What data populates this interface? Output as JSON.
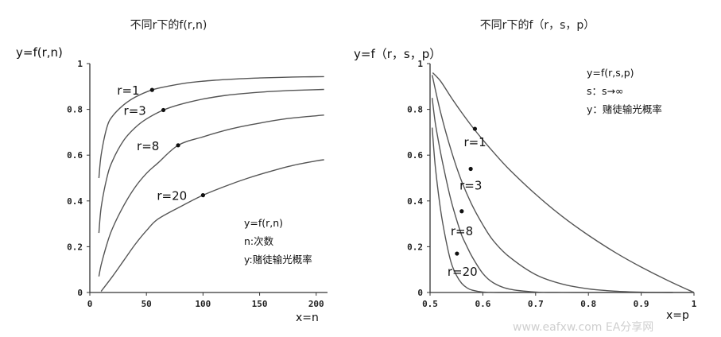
{
  "chart_data": [
    {
      "type": "line",
      "title": "不同r下的f(r,n)",
      "ylabel": "y=f(r,n)",
      "xlabel": "x=n",
      "xlim": [
        0,
        210
      ],
      "ylim": [
        0,
        1
      ],
      "xticks": [
        0,
        50,
        100,
        150,
        200
      ],
      "xtick_labels": [
        "0",
        "50",
        "100",
        "150",
        "200"
      ],
      "yticks": [
        0,
        0.2,
        0.4,
        0.6,
        0.8,
        1
      ],
      "ytick_labels": [
        "0",
        "0.2",
        "0.4",
        "0.6",
        "0.8",
        "1"
      ],
      "legend_notes": [
        "y=f(r,n)",
        "n:次数",
        "y:赌徒输光概率"
      ],
      "series": [
        {
          "name": "r=1",
          "x": [
            8,
            10,
            15,
            20,
            30,
            40,
            55,
            70,
            90,
            110,
            130,
            150,
            170,
            190,
            207
          ],
          "y": [
            0.5,
            0.6,
            0.72,
            0.77,
            0.82,
            0.853,
            0.885,
            0.902,
            0.918,
            0.927,
            0.933,
            0.937,
            0.94,
            0.942,
            0.943
          ],
          "marker": {
            "x": 55,
            "y": 0.885
          }
        },
        {
          "name": "r=3",
          "x": [
            8,
            10,
            15,
            20,
            30,
            40,
            50,
            65,
            80,
            100,
            120,
            140,
            160,
            180,
            207
          ],
          "y": [
            0.26,
            0.37,
            0.5,
            0.575,
            0.665,
            0.72,
            0.758,
            0.797,
            0.822,
            0.845,
            0.861,
            0.871,
            0.878,
            0.883,
            0.887
          ],
          "marker": {
            "x": 65,
            "y": 0.797
          }
        },
        {
          "name": "r=8",
          "x": [
            8,
            10,
            15,
            20,
            30,
            40,
            50,
            60,
            78,
            100,
            125,
            150,
            175,
            200,
            207
          ],
          "y": [
            0.07,
            0.12,
            0.21,
            0.28,
            0.38,
            0.46,
            0.52,
            0.565,
            0.643,
            0.68,
            0.715,
            0.74,
            0.76,
            0.772,
            0.775
          ],
          "marker": {
            "x": 78,
            "y": 0.643
          }
        },
        {
          "name": "r=20",
          "x": [
            10,
            20,
            30,
            40,
            50,
            60,
            80,
            100,
            120,
            140,
            160,
            180,
            200,
            207
          ],
          "y": [
            0.005,
            0.07,
            0.14,
            0.21,
            0.27,
            0.32,
            0.375,
            0.425,
            0.465,
            0.5,
            0.53,
            0.556,
            0.575,
            0.58
          ],
          "marker": {
            "x": 100,
            "y": 0.425
          }
        }
      ]
    },
    {
      "type": "line",
      "title": "不同r下的f（r，s，p）",
      "ylabel": "y=f（r，s，p）",
      "xlabel": "x=p",
      "xlim": [
        0.5,
        1
      ],
      "ylim": [
        0,
        1
      ],
      "xticks": [
        0.5,
        0.6,
        0.7,
        0.8,
        0.9,
        1
      ],
      "xtick_labels": [
        "0.5",
        "0.6",
        "0.7",
        "0.8",
        "0.9",
        "1"
      ],
      "yticks": [
        0,
        0.2,
        0.4,
        0.6,
        0.8,
        1
      ],
      "ytick_labels": [
        "0",
        "0.2",
        "0.4",
        "0.6",
        "0.8",
        "1"
      ],
      "legend_notes": [
        "y=f(r,s,p)",
        "s：s→∞",
        "y：赌徒输光概率"
      ],
      "series": [
        {
          "name": "r=1",
          "x": [
            0.505,
            0.52,
            0.54,
            0.56,
            0.58,
            0.6,
            0.625,
            0.65,
            0.7,
            0.75,
            0.8,
            0.85,
            0.9,
            0.95,
            1.0
          ],
          "y": [
            0.96,
            0.923,
            0.852,
            0.786,
            0.724,
            0.667,
            0.6,
            0.538,
            0.429,
            0.333,
            0.25,
            0.176,
            0.111,
            0.053,
            0.0
          ],
          "marker": {
            "x": 0.585,
            "y": 0.715
          }
        },
        {
          "name": "r=3",
          "x": [
            0.504,
            0.52,
            0.54,
            0.56,
            0.58,
            0.6,
            0.62,
            0.65,
            0.7,
            0.75,
            0.8,
            0.85,
            0.9,
            0.95,
            1.0
          ],
          "y": [
            0.95,
            0.786,
            0.62,
            0.485,
            0.38,
            0.296,
            0.226,
            0.156,
            0.078,
            0.037,
            0.016,
            0.006,
            0.0014,
            0.0001,
            0.0
          ],
          "marker": {
            "x": 0.577,
            "y": 0.54
          }
        },
        {
          "name": "r=8",
          "x": [
            0.504,
            0.51,
            0.52,
            0.53,
            0.54,
            0.55,
            0.56,
            0.57,
            0.58,
            0.6,
            0.62,
            0.65,
            0.7,
            0.75,
            0.8,
            0.85,
            0.9,
            0.96
          ],
          "y": [
            0.85,
            0.74,
            0.61,
            0.5,
            0.4,
            0.32,
            0.25,
            0.2,
            0.155,
            0.083,
            0.042,
            0.015,
            0.002,
            0.0002,
            0.0,
            0.0,
            0.0,
            0.0
          ],
          "marker": {
            "x": 0.56,
            "y": 0.355
          }
        },
        {
          "name": "r=20",
          "x": [
            0.504,
            0.51,
            0.52,
            0.53,
            0.54,
            0.55,
            0.56,
            0.57,
            0.58,
            0.6,
            0.62,
            0.65,
            0.7
          ],
          "y": [
            0.72,
            0.55,
            0.36,
            0.23,
            0.13,
            0.075,
            0.04,
            0.02,
            0.01,
            0.002,
            0.0003,
            0.0,
            0.0
          ],
          "marker": {
            "x": 0.551,
            "y": 0.17
          }
        }
      ]
    }
  ],
  "watermark": "www.eafxw.com  EA分享网"
}
